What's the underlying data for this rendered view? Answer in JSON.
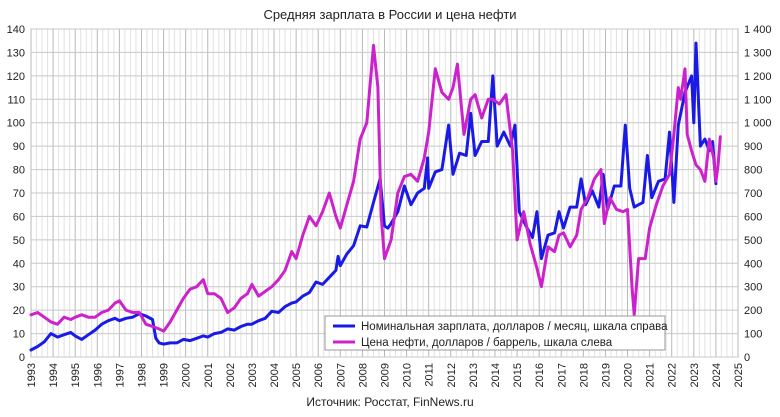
{
  "chart_data": {
    "type": "line",
    "title": "Средняя зарплата в России и цена нефти",
    "source": "Источник: Росстат, FinNews.ru",
    "xlim": [
      1993,
      2025
    ],
    "x_ticks": [
      "1993",
      "1994",
      "1995",
      "1996",
      "1997",
      "1998",
      "1999",
      "2000",
      "2001",
      "2002",
      "2003",
      "2004",
      "2005",
      "2006",
      "2007",
      "2008",
      "2009",
      "2010",
      "2011",
      "2012",
      "2013",
      "2014",
      "2015",
      "2016",
      "2017",
      "2018",
      "2019",
      "2020",
      "2021",
      "2022",
      "2023",
      "2024",
      "2025"
    ],
    "y_left": {
      "ylim": [
        0,
        140
      ],
      "ticks": [
        "0",
        "10",
        "20",
        "30",
        "40",
        "50",
        "60",
        "70",
        "80",
        "90",
        "100",
        "110",
        "120",
        "130",
        "140"
      ]
    },
    "y_right": {
      "ylim": [
        0,
        1400
      ],
      "ticks": [
        "0",
        "100",
        "200",
        "300",
        "400",
        "500",
        "600",
        "700",
        "800",
        "900",
        "1 000",
        "1 100",
        "1 200",
        "1 300",
        "1 400"
      ]
    },
    "grid": true,
    "legend_position": "bottom-center",
    "series": [
      {
        "name": "Номинальная зарплата, долларов / месяц, шкала справа",
        "color": "#1a1ae6",
        "axis": "right",
        "points": [
          [
            1993.0,
            30
          ],
          [
            1993.3,
            45
          ],
          [
            1993.6,
            65
          ],
          [
            1993.9,
            100
          ],
          [
            1994.2,
            85
          ],
          [
            1994.5,
            95
          ],
          [
            1994.8,
            105
          ],
          [
            1995.0,
            90
          ],
          [
            1995.3,
            75
          ],
          [
            1995.6,
            95
          ],
          [
            1995.9,
            115
          ],
          [
            1996.2,
            140
          ],
          [
            1996.5,
            155
          ],
          [
            1996.8,
            165
          ],
          [
            1997.0,
            155
          ],
          [
            1997.3,
            165
          ],
          [
            1997.6,
            170
          ],
          [
            1997.9,
            185
          ],
          [
            1998.2,
            175
          ],
          [
            1998.5,
            160
          ],
          [
            1998.65,
            80
          ],
          [
            1998.8,
            60
          ],
          [
            1999.0,
            55
          ],
          [
            1999.3,
            60
          ],
          [
            1999.6,
            60
          ],
          [
            1999.9,
            75
          ],
          [
            2000.2,
            70
          ],
          [
            2000.5,
            80
          ],
          [
            2000.8,
            90
          ],
          [
            2001.0,
            85
          ],
          [
            2001.3,
            100
          ],
          [
            2001.6,
            105
          ],
          [
            2001.9,
            120
          ],
          [
            2002.2,
            115
          ],
          [
            2002.5,
            130
          ],
          [
            2002.8,
            140
          ],
          [
            2003.0,
            140
          ],
          [
            2003.3,
            155
          ],
          [
            2003.6,
            165
          ],
          [
            2003.9,
            195
          ],
          [
            2004.2,
            190
          ],
          [
            2004.5,
            215
          ],
          [
            2004.8,
            230
          ],
          [
            2005.0,
            235
          ],
          [
            2005.3,
            260
          ],
          [
            2005.6,
            275
          ],
          [
            2005.9,
            320
          ],
          [
            2006.2,
            310
          ],
          [
            2006.5,
            340
          ],
          [
            2006.8,
            370
          ],
          [
            2006.9,
            430
          ],
          [
            2007.0,
            390
          ],
          [
            2007.3,
            440
          ],
          [
            2007.6,
            475
          ],
          [
            2007.9,
            560
          ],
          [
            2008.2,
            555
          ],
          [
            2008.5,
            660
          ],
          [
            2008.8,
            760
          ],
          [
            2009.0,
            560
          ],
          [
            2009.15,
            550
          ],
          [
            2009.3,
            570
          ],
          [
            2009.6,
            620
          ],
          [
            2009.9,
            730
          ],
          [
            2010.2,
            650
          ],
          [
            2010.5,
            700
          ],
          [
            2010.8,
            720
          ],
          [
            2010.95,
            850
          ],
          [
            2011.0,
            720
          ],
          [
            2011.3,
            790
          ],
          [
            2011.6,
            800
          ],
          [
            2011.9,
            990
          ],
          [
            2012.1,
            780
          ],
          [
            2012.4,
            870
          ],
          [
            2012.7,
            860
          ],
          [
            2012.9,
            1040
          ],
          [
            2013.1,
            860
          ],
          [
            2013.4,
            920
          ],
          [
            2013.7,
            920
          ],
          [
            2013.9,
            1200
          ],
          [
            2014.1,
            900
          ],
          [
            2014.4,
            960
          ],
          [
            2014.7,
            900
          ],
          [
            2014.9,
            990
          ],
          [
            2015.1,
            620
          ],
          [
            2015.4,
            560
          ],
          [
            2015.7,
            510
          ],
          [
            2015.9,
            620
          ],
          [
            2016.1,
            420
          ],
          [
            2016.4,
            520
          ],
          [
            2016.7,
            530
          ],
          [
            2016.9,
            620
          ],
          [
            2017.1,
            550
          ],
          [
            2017.4,
            640
          ],
          [
            2017.7,
            640
          ],
          [
            2017.9,
            760
          ],
          [
            2018.1,
            650
          ],
          [
            2018.4,
            710
          ],
          [
            2018.7,
            640
          ],
          [
            2018.9,
            780
          ],
          [
            2019.1,
            630
          ],
          [
            2019.4,
            730
          ],
          [
            2019.7,
            730
          ],
          [
            2019.9,
            990
          ],
          [
            2020.1,
            720
          ],
          [
            2020.3,
            640
          ],
          [
            2020.5,
            650
          ],
          [
            2020.7,
            660
          ],
          [
            2020.9,
            860
          ],
          [
            2021.1,
            680
          ],
          [
            2021.4,
            750
          ],
          [
            2021.7,
            760
          ],
          [
            2021.9,
            960
          ],
          [
            2022.1,
            660
          ],
          [
            2022.3,
            990
          ],
          [
            2022.6,
            1130
          ],
          [
            2022.9,
            1200
          ],
          [
            2023.0,
            1000
          ],
          [
            2023.1,
            1340
          ],
          [
            2023.3,
            900
          ],
          [
            2023.5,
            930
          ],
          [
            2023.7,
            880
          ],
          [
            2023.85,
            920
          ],
          [
            2024.0,
            740
          ]
        ]
      },
      {
        "name": "Цена нефти, долларов / баррель, шкала слева",
        "color": "#cc22cc",
        "axis": "left",
        "points": [
          [
            1993.0,
            18
          ],
          [
            1993.3,
            19
          ],
          [
            1993.6,
            17
          ],
          [
            1993.9,
            15
          ],
          [
            1994.2,
            14
          ],
          [
            1994.5,
            17
          ],
          [
            1994.8,
            16
          ],
          [
            1995.0,
            17
          ],
          [
            1995.3,
            18
          ],
          [
            1995.6,
            17
          ],
          [
            1995.9,
            17
          ],
          [
            1996.2,
            19
          ],
          [
            1996.5,
            20
          ],
          [
            1996.8,
            23
          ],
          [
            1997.0,
            24
          ],
          [
            1997.3,
            20
          ],
          [
            1997.6,
            19
          ],
          [
            1997.9,
            19
          ],
          [
            1998.2,
            14
          ],
          [
            1998.5,
            13
          ],
          [
            1998.8,
            12
          ],
          [
            1999.0,
            11
          ],
          [
            1999.3,
            15
          ],
          [
            1999.6,
            20
          ],
          [
            1999.9,
            25
          ],
          [
            2000.2,
            29
          ],
          [
            2000.5,
            30
          ],
          [
            2000.8,
            33
          ],
          [
            2001.0,
            27
          ],
          [
            2001.3,
            27
          ],
          [
            2001.6,
            25
          ],
          [
            2001.9,
            19
          ],
          [
            2002.2,
            21
          ],
          [
            2002.5,
            25
          ],
          [
            2002.8,
            27
          ],
          [
            2003.0,
            31
          ],
          [
            2003.3,
            26
          ],
          [
            2003.6,
            28
          ],
          [
            2003.9,
            30
          ],
          [
            2004.2,
            33
          ],
          [
            2004.5,
            37
          ],
          [
            2004.8,
            45
          ],
          [
            2005.0,
            42
          ],
          [
            2005.3,
            52
          ],
          [
            2005.6,
            60
          ],
          [
            2005.9,
            56
          ],
          [
            2006.2,
            62
          ],
          [
            2006.5,
            70
          ],
          [
            2006.8,
            60
          ],
          [
            2007.0,
            55
          ],
          [
            2007.3,
            65
          ],
          [
            2007.6,
            75
          ],
          [
            2007.9,
            93
          ],
          [
            2008.2,
            100
          ],
          [
            2008.5,
            133
          ],
          [
            2008.7,
            115
          ],
          [
            2008.85,
            60
          ],
          [
            2009.0,
            42
          ],
          [
            2009.3,
            50
          ],
          [
            2009.6,
            70
          ],
          [
            2009.9,
            77
          ],
          [
            2010.2,
            78
          ],
          [
            2010.5,
            75
          ],
          [
            2010.8,
            85
          ],
          [
            2011.0,
            96
          ],
          [
            2011.3,
            123
          ],
          [
            2011.6,
            113
          ],
          [
            2011.9,
            110
          ],
          [
            2012.1,
            115
          ],
          [
            2012.3,
            125
          ],
          [
            2012.6,
            95
          ],
          [
            2012.9,
            110
          ],
          [
            2013.1,
            112
          ],
          [
            2013.4,
            102
          ],
          [
            2013.7,
            110
          ],
          [
            2013.9,
            110
          ],
          [
            2014.2,
            108
          ],
          [
            2014.5,
            112
          ],
          [
            2014.8,
            88
          ],
          [
            2015.0,
            50
          ],
          [
            2015.3,
            62
          ],
          [
            2015.6,
            48
          ],
          [
            2015.9,
            38
          ],
          [
            2016.1,
            30
          ],
          [
            2016.4,
            47
          ],
          [
            2016.7,
            45
          ],
          [
            2016.9,
            52
          ],
          [
            2017.1,
            53
          ],
          [
            2017.4,
            47
          ],
          [
            2017.7,
            52
          ],
          [
            2017.9,
            63
          ],
          [
            2018.2,
            68
          ],
          [
            2018.5,
            76
          ],
          [
            2018.8,
            80
          ],
          [
            2018.95,
            57
          ],
          [
            2019.2,
            68
          ],
          [
            2019.5,
            63
          ],
          [
            2019.8,
            62
          ],
          [
            2020.0,
            63
          ],
          [
            2020.2,
            30
          ],
          [
            2020.3,
            18
          ],
          [
            2020.5,
            42
          ],
          [
            2020.8,
            42
          ],
          [
            2021.0,
            55
          ],
          [
            2021.3,
            65
          ],
          [
            2021.6,
            73
          ],
          [
            2021.9,
            78
          ],
          [
            2022.1,
            95
          ],
          [
            2022.3,
            115
          ],
          [
            2022.4,
            110
          ],
          [
            2022.6,
            123
          ],
          [
            2022.7,
            95
          ],
          [
            2022.9,
            88
          ],
          [
            2023.1,
            82
          ],
          [
            2023.3,
            80
          ],
          [
            2023.5,
            75
          ],
          [
            2023.7,
            93
          ],
          [
            2023.9,
            85
          ],
          [
            2024.0,
            75
          ],
          [
            2024.1,
            82
          ],
          [
            2024.2,
            94
          ]
        ]
      }
    ]
  }
}
